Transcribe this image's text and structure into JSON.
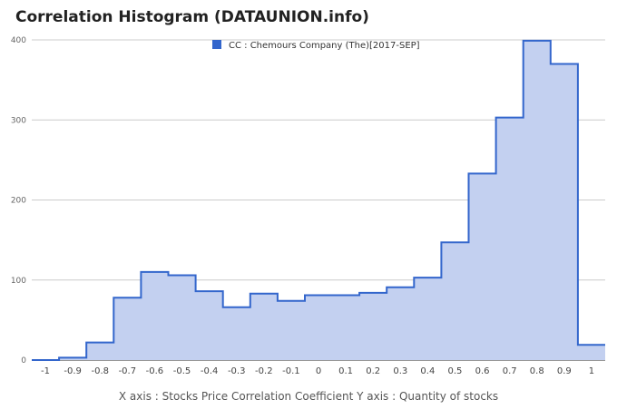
{
  "title": "Correlation Histogram (DATAUNION.info)",
  "chart_data": {
    "type": "area",
    "title": "Correlation Histogram (DATAUNION.info)",
    "xlabel": "X axis : Stocks Price Correlation Coefficient  Y axis : Quantity of stocks",
    "ylabel": "",
    "x_ticks": [
      "-1",
      "-0.9",
      "-0.8",
      "-0.7",
      "-0.6",
      "-0.5",
      "-0.4",
      "-0.3",
      "-0.2",
      "-0.1",
      "0",
      "0.1",
      "0.2",
      "0.3",
      "0.4",
      "0.5",
      "0.6",
      "0.7",
      "0.8",
      "0.9",
      "1"
    ],
    "y_ticks": [
      0,
      100,
      200,
      300,
      400
    ],
    "xlim": [
      -1.05,
      1.05
    ],
    "ylim": [
      0,
      400
    ],
    "grid": true,
    "legend_position": "top-center",
    "series": [
      {
        "name": "CC : Chemours Company (The)[2017-SEP]",
        "color": "#3366cc",
        "fill": "#c3d0f0",
        "x": [
          -1,
          -0.9,
          -0.8,
          -0.7,
          -0.6,
          -0.5,
          -0.4,
          -0.3,
          -0.2,
          -0.1,
          0,
          0.1,
          0.2,
          0.3,
          0.4,
          0.5,
          0.6,
          0.7,
          0.8,
          0.9,
          1
        ],
        "values": [
          0,
          3,
          22,
          78,
          110,
          106,
          86,
          66,
          83,
          74,
          81,
          81,
          84,
          91,
          103,
          147,
          233,
          303,
          399,
          370,
          19
        ]
      }
    ]
  }
}
